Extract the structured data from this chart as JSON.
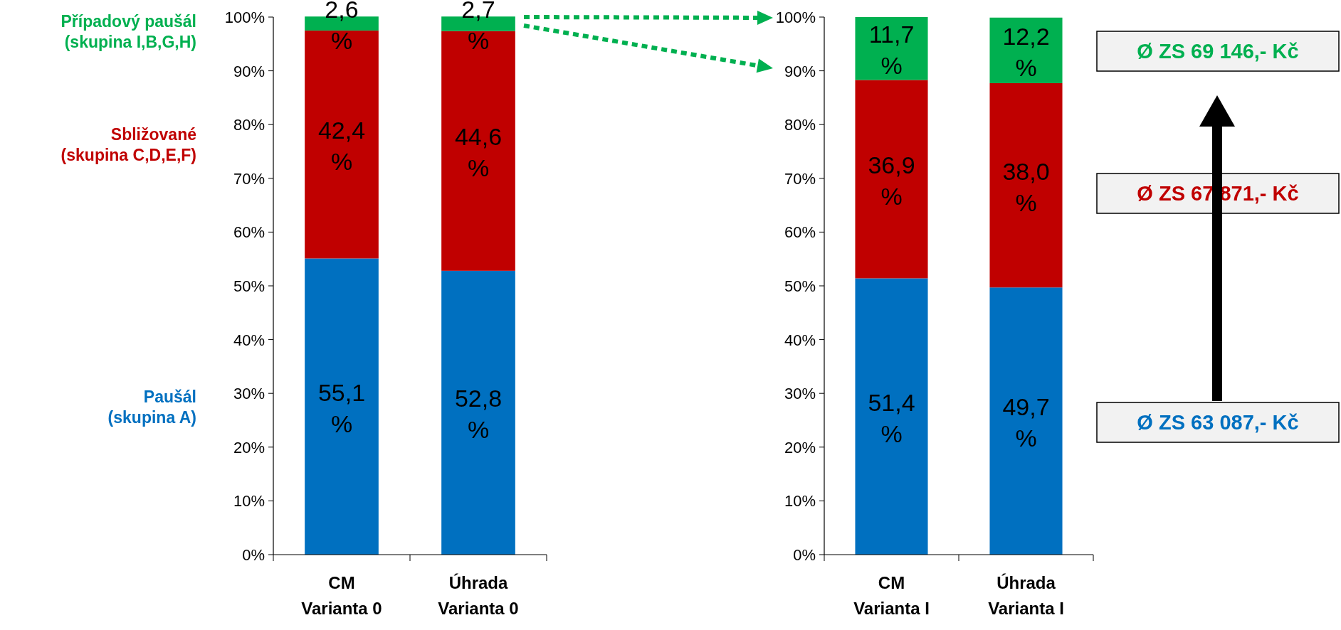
{
  "chart_data": [
    {
      "type": "bar",
      "stacked": true,
      "legend": "left",
      "categories": [
        "CM Varianta 0",
        "Úhrada Varianta 0"
      ],
      "series": [
        {
          "name": "Paušál (skupina A)",
          "color": "#0070c0",
          "values": [
            55.1,
            52.8
          ],
          "value_labels": [
            "55,1 %",
            "52,8 %"
          ]
        },
        {
          "name": "Sbližované (skupina C,D,E,F)",
          "color": "#c00000",
          "values": [
            42.4,
            44.6
          ],
          "value_labels": [
            "42,4 %",
            "44,6 %"
          ]
        },
        {
          "name": "Případový paušál (skupina I,B,G,H)",
          "color": "#00b050",
          "values": [
            2.6,
            2.7
          ],
          "value_labels": [
            "2,6 %",
            "2,7 %"
          ]
        }
      ],
      "ylim": [
        0,
        100
      ],
      "yticks": [
        {
          "value": 0,
          "label": "0%"
        },
        {
          "value": 10,
          "label": "10%"
        },
        {
          "value": 20,
          "label": "20%"
        },
        {
          "value": 30,
          "label": "30%"
        },
        {
          "value": 40,
          "label": "40%"
        },
        {
          "value": 50,
          "label": "50%"
        },
        {
          "value": 60,
          "label": "60%"
        },
        {
          "value": 70,
          "label": "70%"
        },
        {
          "value": 80,
          "label": "80%"
        },
        {
          "value": 90,
          "label": "90%"
        },
        {
          "value": 100,
          "label": "100%"
        }
      ]
    },
    {
      "type": "bar",
      "stacked": true,
      "categories": [
        "CM Varianta I",
        "Úhrada Varianta I"
      ],
      "series": [
        {
          "color": "#0070c0",
          "values": [
            51.4,
            49.7
          ],
          "value_labels": [
            "51,4 %",
            "49,7 %"
          ]
        },
        {
          "color": "#c00000",
          "values": [
            36.9,
            38.0
          ],
          "value_labels": [
            "36,9 %",
            "38,0 %"
          ]
        },
        {
          "color": "#00b050",
          "values": [
            11.7,
            12.2
          ],
          "value_labels": [
            "11,7 %",
            "12,2 %"
          ]
        }
      ],
      "ylim": [
        0,
        100
      ],
      "yticks": [
        {
          "value": 0,
          "label": "0%"
        },
        {
          "value": 10,
          "label": "10%"
        },
        {
          "value": 20,
          "label": "20%"
        },
        {
          "value": 30,
          "label": "30%"
        },
        {
          "value": 40,
          "label": "40%"
        },
        {
          "value": 50,
          "label": "50%"
        },
        {
          "value": 60,
          "label": "60%"
        },
        {
          "value": 70,
          "label": "70%"
        },
        {
          "value": 80,
          "label": "80%"
        },
        {
          "value": 90,
          "label": "90%"
        },
        {
          "value": 100,
          "label": "100%"
        }
      ],
      "annotations": [
        "Ø ZS 69 146,- Kč",
        "Ø ZS 67 871,- Kč",
        "Ø ZS 63 087,- Kč"
      ]
    }
  ]
}
